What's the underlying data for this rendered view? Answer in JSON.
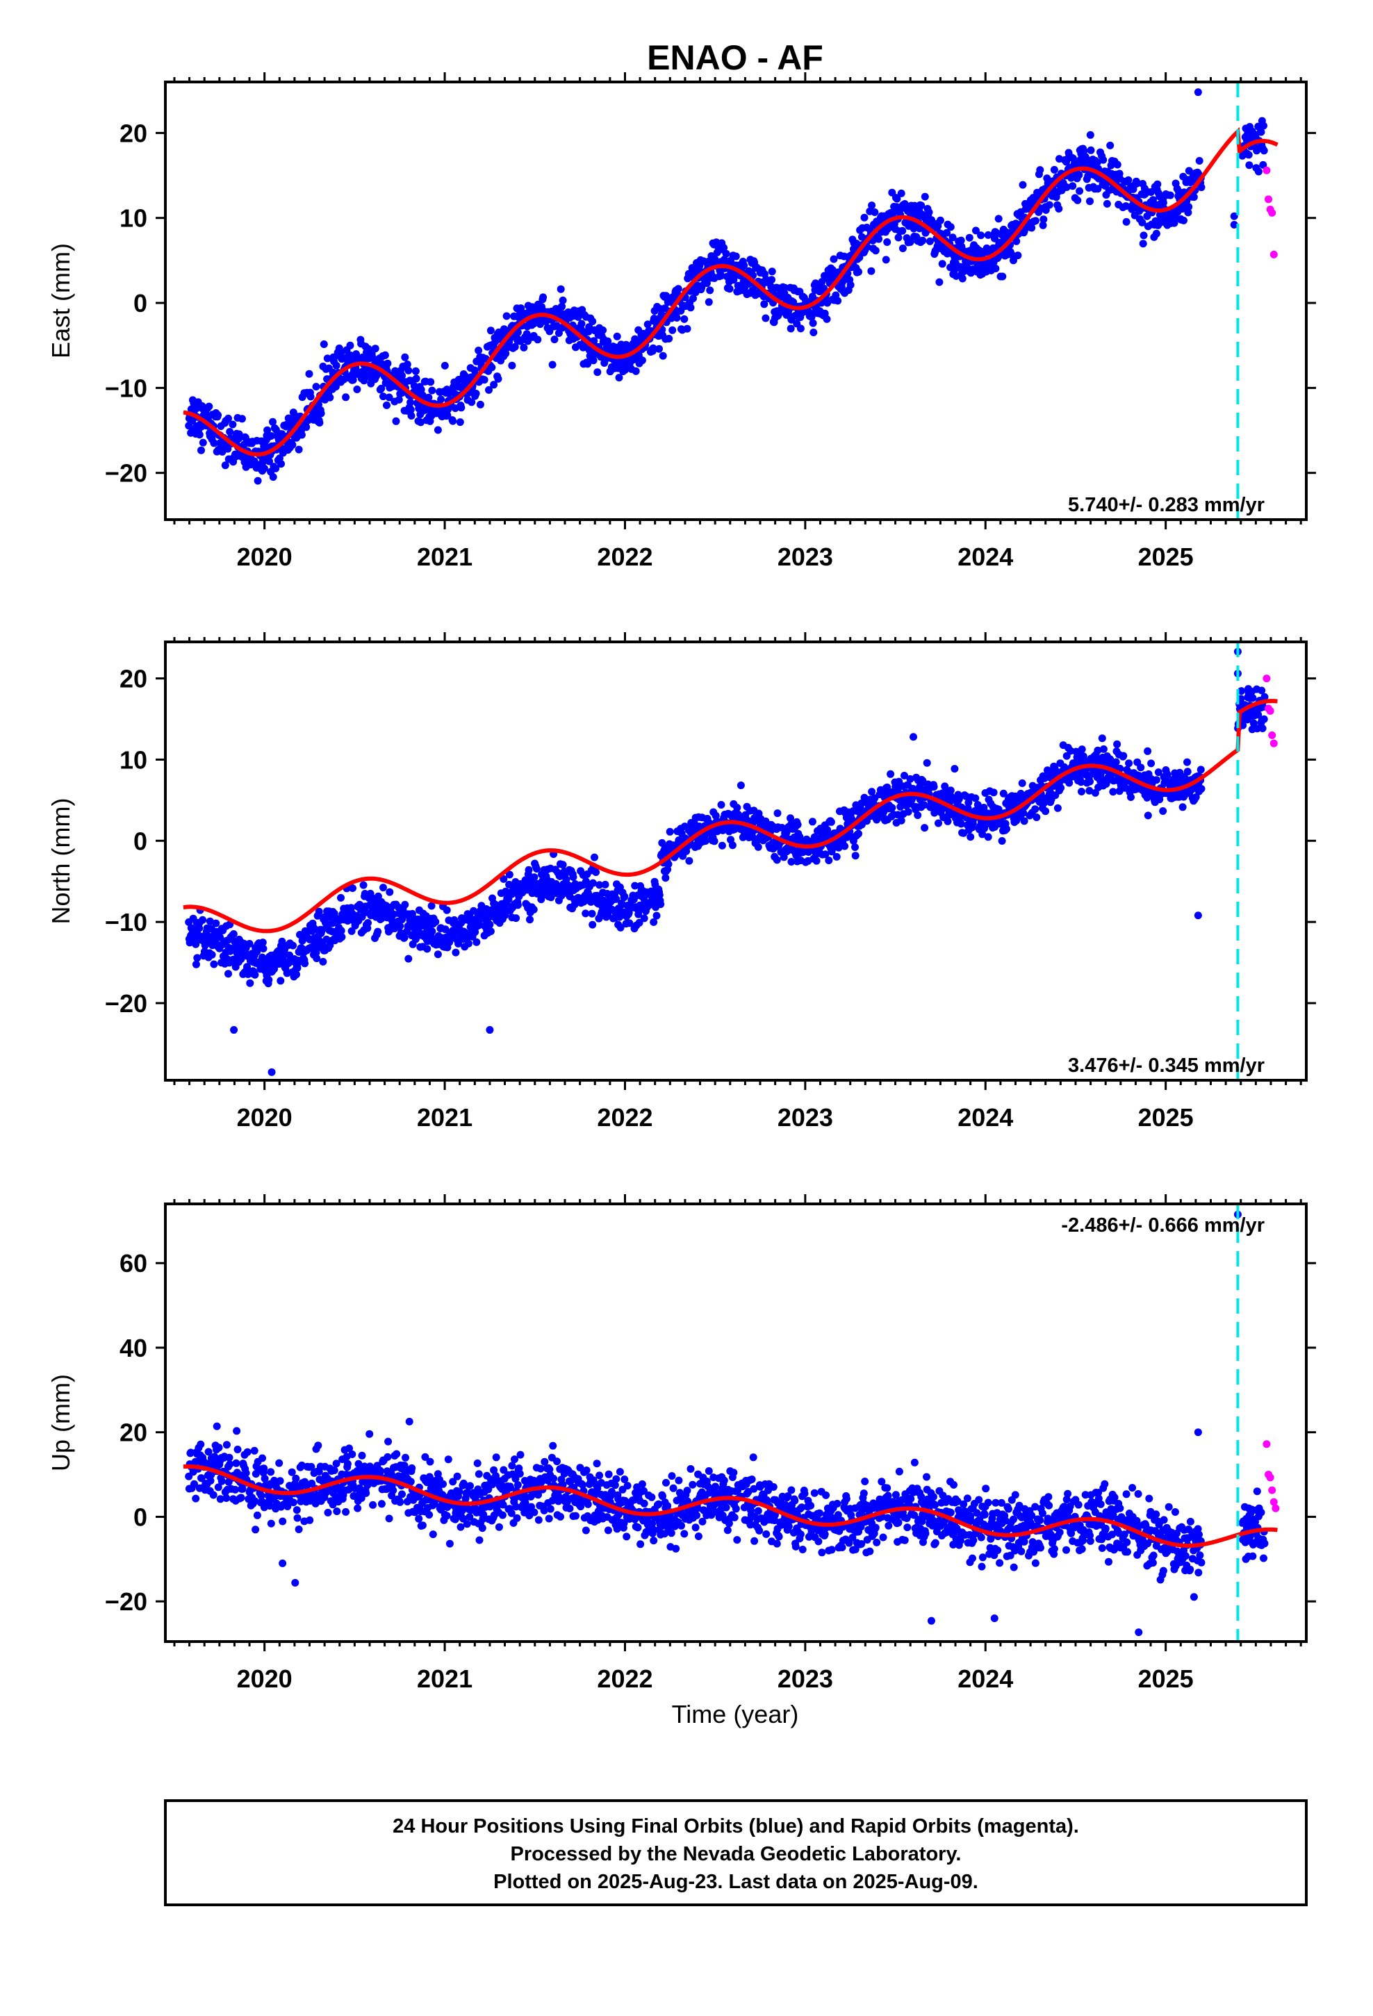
{
  "title": "ENAO - AF",
  "xlabel": "Time (year)",
  "footer": [
    "24 Hour Positions Using Final Orbits (blue) and Rapid Orbits (magenta).",
    "Processed by the Nevada Geodetic Laboratory.",
    "Plotted on 2025-Aug-23. Last data on 2025-Aug-09."
  ],
  "colors": {
    "final_orbits": "#0000ff",
    "rapid_orbits": "#ff00ff",
    "model_fit": "#ff0000",
    "equipment_change": "#00e5e5"
  },
  "chart_data": [
    {
      "type": "scatter",
      "ylabel": "East (mm)",
      "xlim": [
        2019.45,
        2025.78
      ],
      "ylim": [
        -25.5,
        26
      ],
      "xticks": [
        "2020",
        "2021",
        "2022",
        "2023",
        "2024",
        "2025"
      ],
      "yticks": [
        "−20",
        "−10",
        "0",
        "10",
        "20"
      ],
      "ytick_values": [
        -20,
        -10,
        0,
        10,
        20
      ],
      "rate_label": "5.740+/- 0.283 mm/yr",
      "rate_mm_per_yr": 5.74,
      "event_line_year": 2025.4,
      "model": {
        "t0": 2019.55,
        "start_value": -16.5,
        "trend_mm_per_yr": 5.74,
        "annual_amplitude_mm": 3.8,
        "annual_peak_year_fraction": 0.5,
        "offset_at_event_mm": -2.5
      },
      "series": [
        {
          "name": "Final Orbits (blue)",
          "start": 2019.58,
          "end": 2025.55,
          "scatter_mm": 1.4,
          "gaps": [
            [
              2025.2,
              2025.42
            ]
          ],
          "outliers": [
            [
              2025.18,
              24.8
            ],
            [
              2025.38,
              10.2
            ],
            [
              2025.38,
              9.2
            ]
          ]
        },
        {
          "name": "Rapid Orbits (magenta)",
          "points": [
            [
              2025.56,
              15.6
            ],
            [
              2025.57,
              12.2
            ],
            [
              2025.58,
              11.0
            ],
            [
              2025.59,
              10.6
            ],
            [
              2025.6,
              5.7
            ]
          ]
        }
      ]
    },
    {
      "type": "scatter",
      "ylabel": "North (mm)",
      "xlim": [
        2019.45,
        2025.78
      ],
      "ylim": [
        -29.5,
        24.5
      ],
      "xticks": [
        "2020",
        "2021",
        "2022",
        "2023",
        "2024",
        "2025"
      ],
      "yticks": [
        "−20",
        "−10",
        "0",
        "10",
        "20"
      ],
      "ytick_values": [
        -20,
        -10,
        0,
        10,
        20
      ],
      "rate_label": "3.476+/- 0.345 mm/yr",
      "rate_mm_per_yr": 3.476,
      "event_line_year": 2025.4,
      "model": {
        "t0": 2019.55,
        "start_value": -10.5,
        "trend_mm_per_yr": 3.476,
        "annual_amplitude_mm": 2.3,
        "annual_peak_year_fraction": 0.55,
        "offset_at_event_mm": 4.5
      },
      "series": [
        {
          "name": "Final Orbits (blue)",
          "start": 2019.58,
          "end": 2025.55,
          "scatter_mm": 1.3,
          "gaps": [
            [
              2025.2,
              2025.4
            ]
          ],
          "steps": [
            [
              2022.2,
              8.5
            ]
          ],
          "data_start_offset_mm": -4.0,
          "outliers": [
            [
              2019.83,
              -23.3
            ],
            [
              2020.04,
              -28.5
            ],
            [
              2021.25,
              -23.3
            ],
            [
              2023.6,
              12.8
            ],
            [
              2025.18,
              -9.2
            ],
            [
              2025.4,
              23.3
            ],
            [
              2025.4,
              20.6
            ]
          ]
        },
        {
          "name": "Rapid Orbits (magenta)",
          "points": [
            [
              2025.56,
              20.0
            ],
            [
              2025.57,
              16.3
            ],
            [
              2025.58,
              16.0
            ],
            [
              2025.59,
              13.0
            ],
            [
              2025.6,
              12.0
            ]
          ]
        }
      ]
    },
    {
      "type": "scatter",
      "ylabel": "Up (mm)",
      "xlabel": "Time (year)",
      "xlim": [
        2019.45,
        2025.78
      ],
      "ylim": [
        -29.5,
        74
      ],
      "xticks": [
        "2020",
        "2021",
        "2022",
        "2023",
        "2024",
        "2025"
      ],
      "yticks": [
        "−20",
        "0",
        "20",
        "40",
        "60"
      ],
      "ytick_values": [
        -20,
        0,
        20,
        40,
        60
      ],
      "rate_label": "-2.486+/- 0.666 mm/yr",
      "rate_mm_per_yr": -2.486,
      "event_line_year": 2025.4,
      "model": {
        "t0": 2019.55,
        "start_value": 9.5,
        "trend_mm_per_yr": -2.486,
        "annual_amplitude_mm": 2.5,
        "annual_peak_year_fraction": 0.6,
        "offset_at_event_mm": 0
      },
      "series": [
        {
          "name": "Final Orbits (blue)",
          "start": 2019.58,
          "end": 2025.55,
          "scatter_mm": 3.6,
          "gaps": [
            [
              2025.2,
              2025.42
            ]
          ],
          "outliers": [
            [
              2020.1,
              -11.0
            ],
            [
              2020.17,
              -15.6
            ],
            [
              2021.6,
              16.8
            ],
            [
              2023.7,
              -24.6
            ],
            [
              2024.05,
              -24.0
            ],
            [
              2024.85,
              -27.3
            ],
            [
              2025.18,
              20.0
            ],
            [
              2025.4,
              71.5
            ]
          ]
        },
        {
          "name": "Rapid Orbits (magenta)",
          "points": [
            [
              2025.56,
              17.2
            ],
            [
              2025.57,
              10.0
            ],
            [
              2025.58,
              9.3
            ],
            [
              2025.59,
              6.3
            ],
            [
              2025.6,
              3.5
            ],
            [
              2025.61,
              2.0
            ]
          ]
        }
      ]
    }
  ]
}
